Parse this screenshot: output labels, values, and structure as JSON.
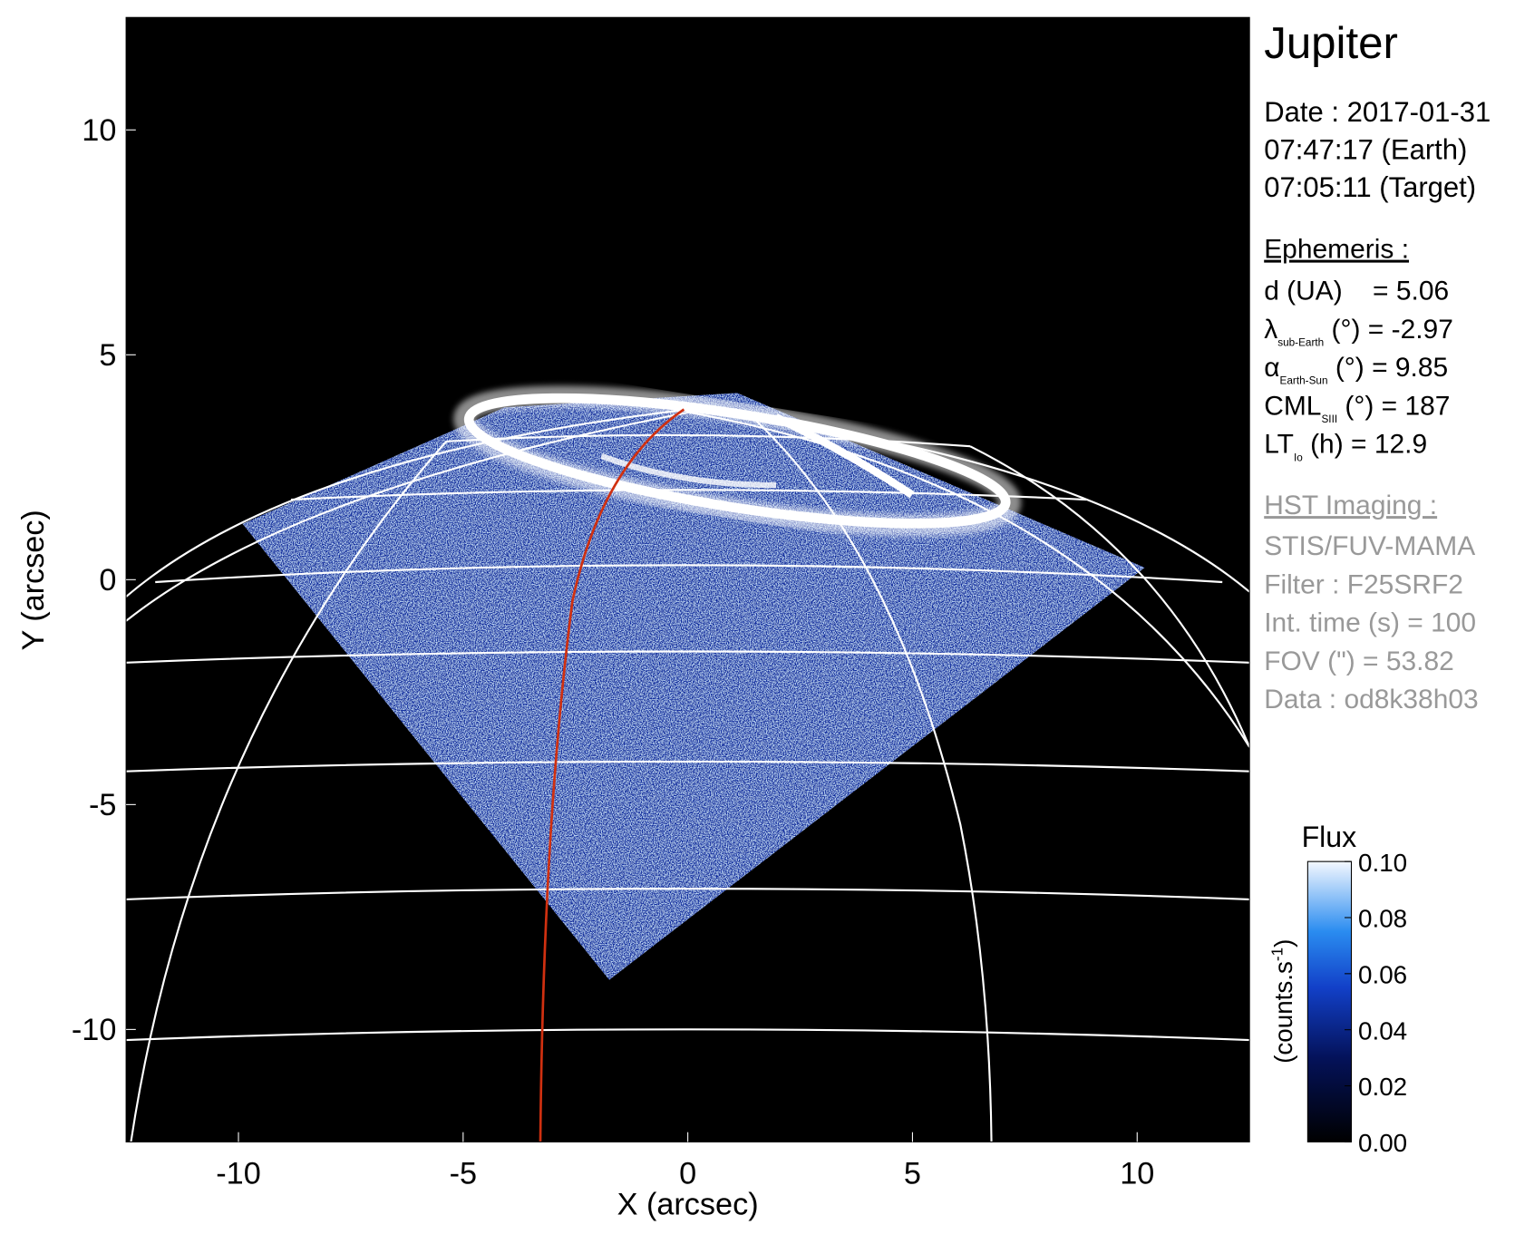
{
  "chart_data": {
    "type": "image",
    "xlabel": "X (arcsec)",
    "ylabel": "Y (arcsec)",
    "xlim": [
      -12.5,
      12.5
    ],
    "ylim": [
      -12.5,
      12.5
    ],
    "xticks": [
      -10,
      -5,
      0,
      5,
      10
    ],
    "yticks": [
      -10,
      -5,
      0,
      5,
      10
    ],
    "colorbar": {
      "title": "Flux",
      "unit": "(counts.s",
      "unit_sup": "-1",
      "unit_end": ")",
      "lim": [
        0,
        0.1
      ],
      "ticks": [
        {
          "value": 0,
          "label": "0.00"
        },
        {
          "value": 0.02,
          "label": "0.02"
        },
        {
          "value": 0.04,
          "label": "0.04"
        },
        {
          "value": 0.06,
          "label": "0.06"
        },
        {
          "value": 0.08,
          "label": "0.08"
        },
        {
          "value": 0.1,
          "label": "0.10"
        }
      ]
    }
  },
  "panel": {
    "title": "Jupiter",
    "date_lines": [
      "Date : 2017-01-31",
      "07:47:17 (Earth)",
      "07:05:11 (Target)"
    ],
    "ephemeris_title": "Ephemeris :",
    "ephemeris": [
      {
        "symbol": "d (UA)    = 5.06"
      },
      {
        "symbol": "λ",
        "sub": "sub-Earth",
        "rest": " (°) = -2.97"
      },
      {
        "symbol": "α",
        "sub": "Earth-Sun",
        "rest": " (°) = 9.85"
      },
      {
        "symbol": "CML",
        "sub": "SIII",
        "rest": " (°) = 187"
      },
      {
        "symbol": "LT",
        "sub": "Io",
        "rest": " (h) = 12.9"
      }
    ],
    "hst_title": "HST Imaging :",
    "hst": [
      "STIS/FUV-MAMA",
      "Filter : F25SRF2",
      "Int. time (s) = 100",
      "FOV (\") = 53.82",
      "Data : od8k38h03"
    ]
  }
}
